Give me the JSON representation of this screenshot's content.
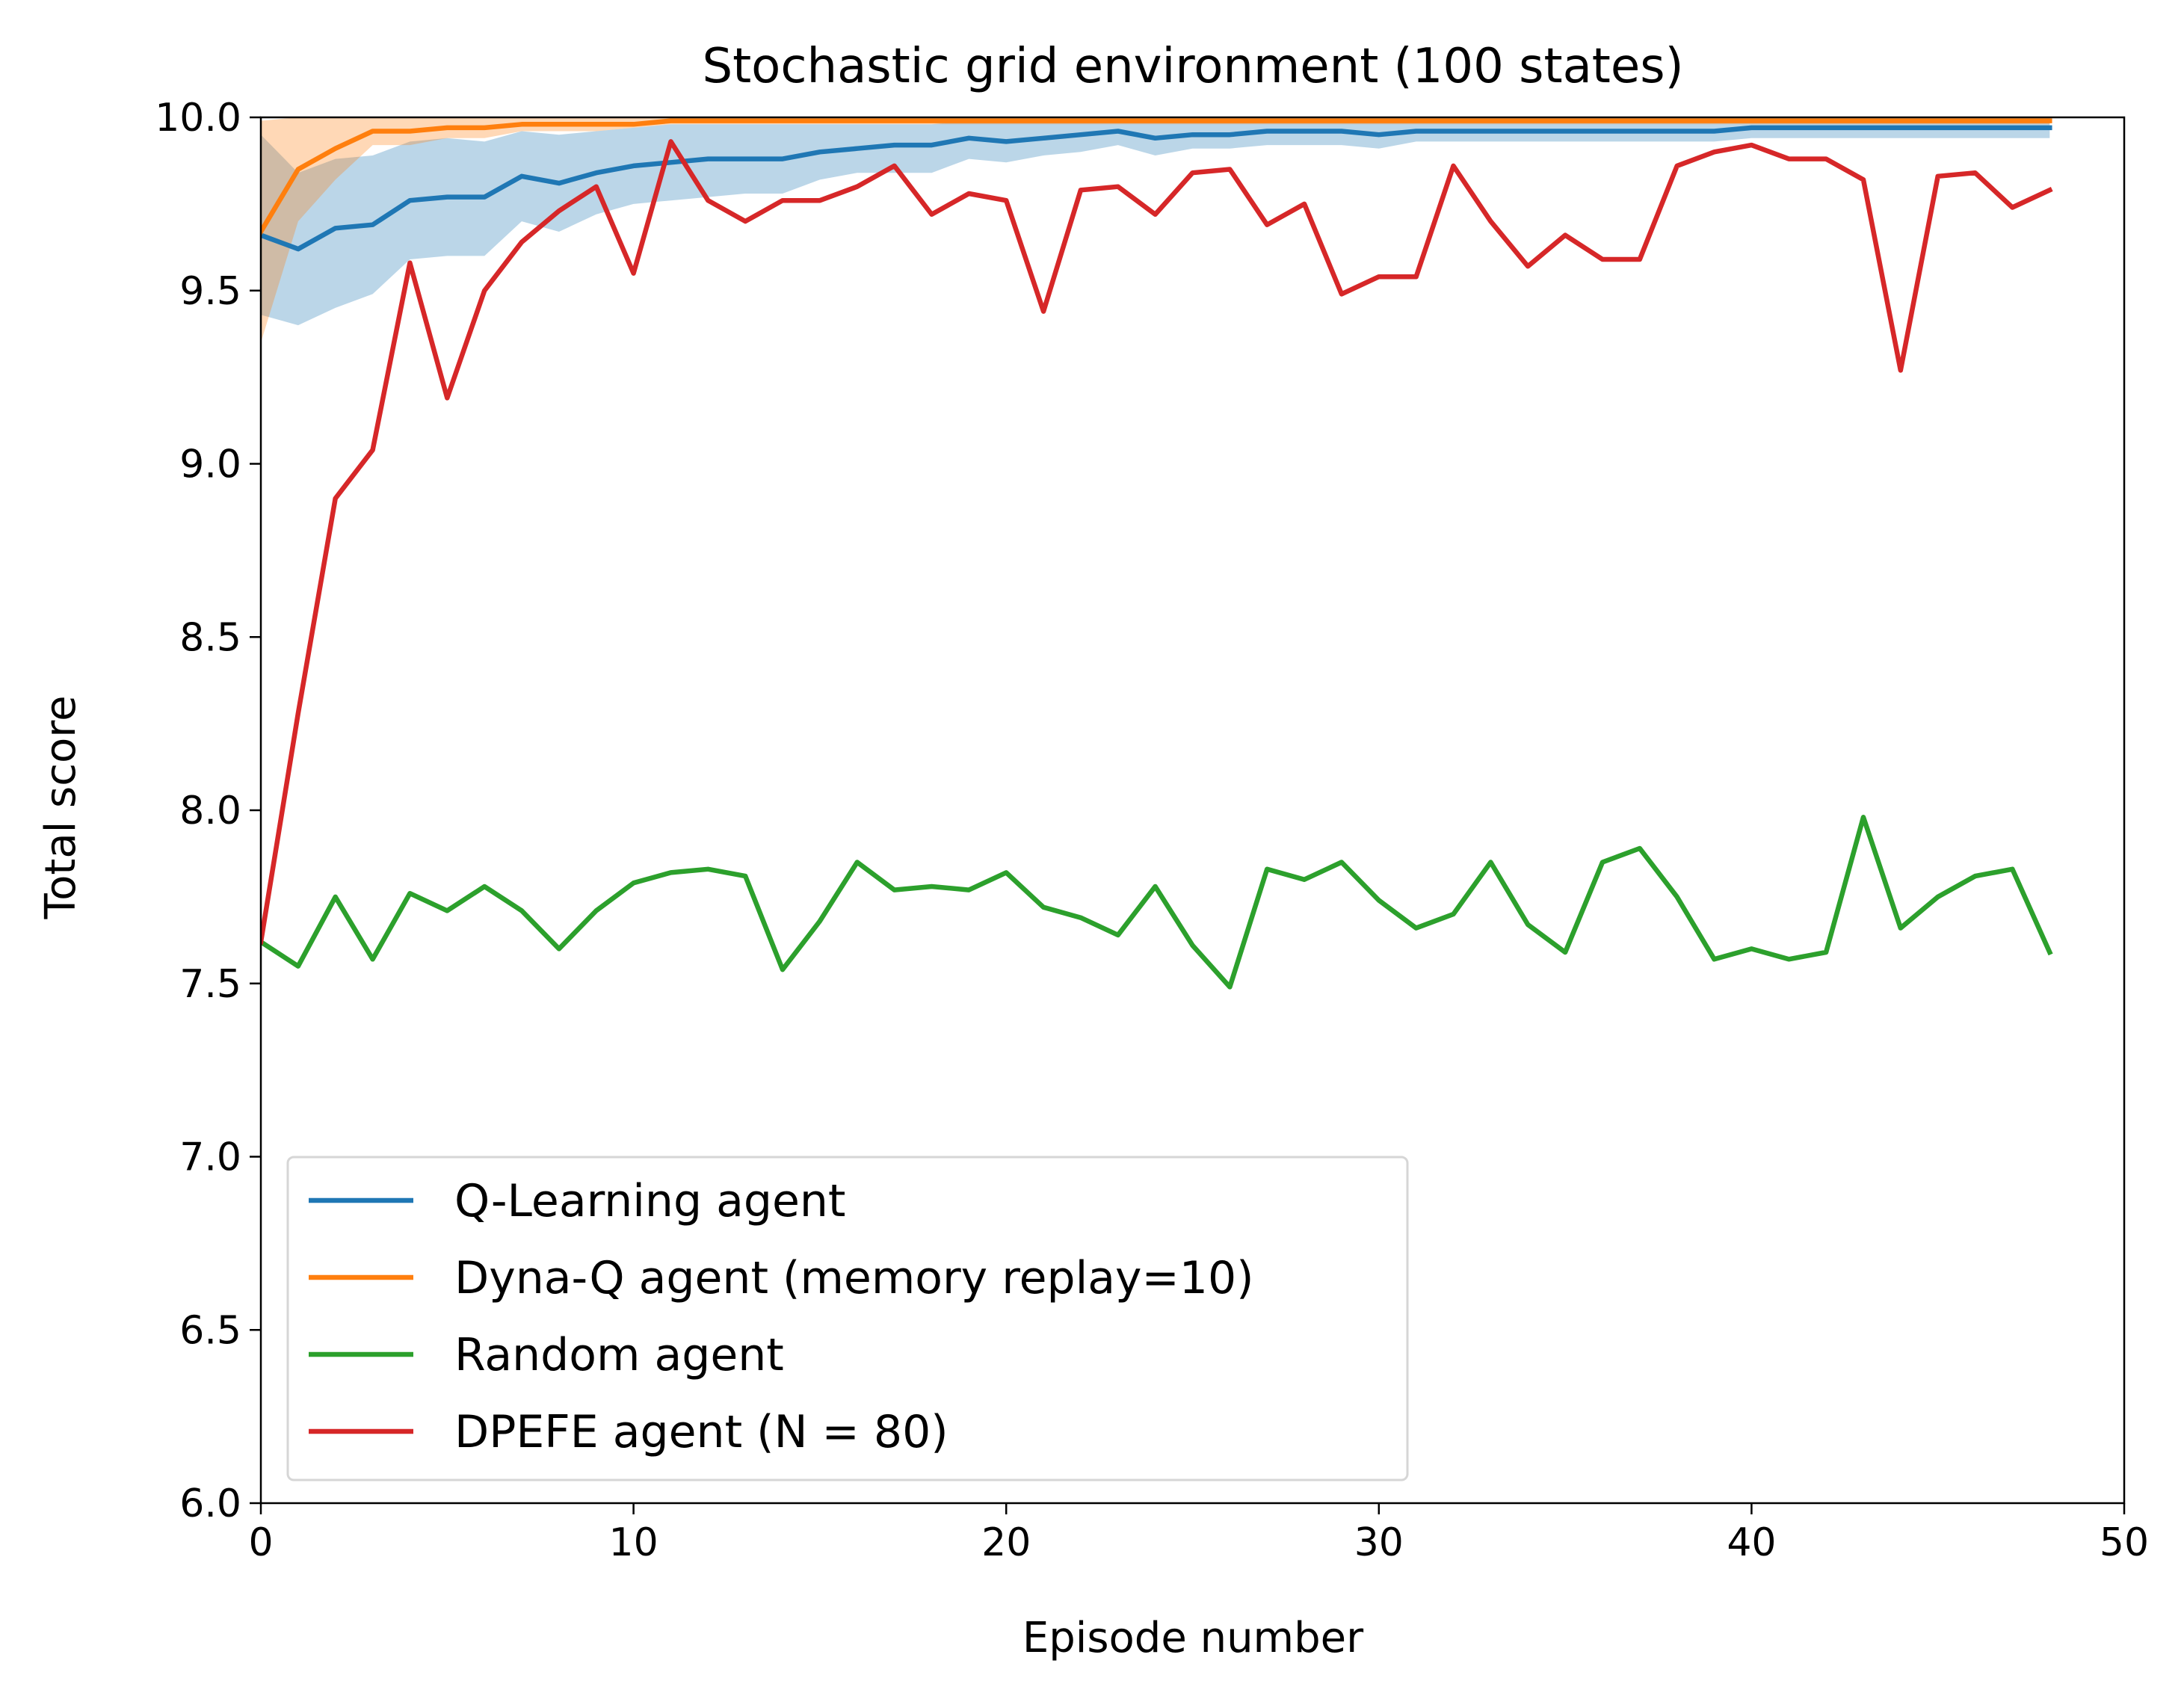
{
  "chart_data": {
    "type": "line",
    "title": "Stochastic grid environment (100 states)",
    "xlabel": "Episode number",
    "ylabel": "Total score",
    "xlim": [
      0,
      50
    ],
    "ylim": [
      6.0,
      10.0
    ],
    "xticks": [
      "0",
      "10",
      "20",
      "30",
      "40",
      "50"
    ],
    "yticks": [
      "6.0",
      "6.5",
      "7.0",
      "7.5",
      "8.0",
      "8.5",
      "9.0",
      "9.5",
      "10.0"
    ],
    "grid": false,
    "legend_position": "lower-left",
    "x": [
      0,
      1,
      2,
      3,
      4,
      5,
      6,
      7,
      8,
      9,
      10,
      11,
      12,
      13,
      14,
      15,
      16,
      17,
      18,
      19,
      20,
      21,
      22,
      23,
      24,
      25,
      26,
      27,
      28,
      29,
      30,
      31,
      32,
      33,
      34,
      35,
      36,
      37,
      38,
      39,
      40,
      41,
      42,
      43,
      44,
      45,
      46,
      47,
      48
    ],
    "series": [
      {
        "name": "Q-Learning agent",
        "color": "#1f77b4",
        "values": [
          9.66,
          9.62,
          9.68,
          9.69,
          9.76,
          9.77,
          9.77,
          9.83,
          9.81,
          9.84,
          9.86,
          9.87,
          9.88,
          9.88,
          9.88,
          9.9,
          9.91,
          9.92,
          9.92,
          9.94,
          9.93,
          9.94,
          9.95,
          9.96,
          9.94,
          9.95,
          9.95,
          9.96,
          9.96,
          9.96,
          9.95,
          9.96,
          9.96,
          9.96,
          9.96,
          9.96,
          9.96,
          9.96,
          9.96,
          9.96,
          9.97,
          9.97,
          9.97,
          9.97,
          9.97,
          9.97,
          9.97,
          9.97,
          9.97
        ],
        "band_upper": [
          9.95,
          9.84,
          9.88,
          9.89,
          9.93,
          9.94,
          9.93,
          9.96,
          9.95,
          9.96,
          9.97,
          9.98,
          9.98,
          9.98,
          9.98,
          9.98,
          9.98,
          9.98,
          9.98,
          9.99,
          9.99,
          9.99,
          9.99,
          9.99,
          9.99,
          9.99,
          9.99,
          9.99,
          9.99,
          9.99,
          9.99,
          9.99,
          9.99,
          9.99,
          9.99,
          9.99,
          9.99,
          9.99,
          9.99,
          9.99,
          9.99,
          9.99,
          9.99,
          9.99,
          9.99,
          9.99,
          9.99,
          9.99,
          9.99
        ],
        "band_lower": [
          9.43,
          9.4,
          9.45,
          9.49,
          9.59,
          9.6,
          9.6,
          9.7,
          9.67,
          9.72,
          9.75,
          9.76,
          9.77,
          9.78,
          9.78,
          9.82,
          9.84,
          9.84,
          9.84,
          9.88,
          9.87,
          9.89,
          9.9,
          9.92,
          9.89,
          9.91,
          9.91,
          9.92,
          9.92,
          9.92,
          9.91,
          9.93,
          9.93,
          9.93,
          9.93,
          9.93,
          9.93,
          9.93,
          9.93,
          9.93,
          9.94,
          9.94,
          9.94,
          9.94,
          9.94,
          9.94,
          9.94,
          9.94,
          9.94
        ]
      },
      {
        "name": "Dyna-Q agent (memory replay=10)",
        "color": "#ff7f0e",
        "values": [
          9.67,
          9.85,
          9.91,
          9.96,
          9.96,
          9.97,
          9.97,
          9.98,
          9.98,
          9.98,
          9.98,
          9.99,
          9.99,
          9.99,
          9.99,
          9.99,
          9.99,
          9.99,
          9.99,
          9.99,
          9.99,
          9.99,
          9.99,
          9.99,
          9.99,
          9.99,
          9.99,
          9.99,
          9.99,
          9.99,
          9.99,
          9.99,
          9.99,
          9.99,
          9.99,
          9.99,
          9.99,
          9.99,
          9.99,
          9.99,
          9.99,
          9.99,
          9.99,
          9.99,
          9.99,
          9.99,
          9.99,
          9.99,
          9.99
        ],
        "band_upper": [
          9.99,
          10.0,
          10.0,
          10.0,
          10.0,
          10.0,
          10.0,
          10.0,
          10.0,
          10.0,
          10.0,
          10.0,
          10.0,
          10.0,
          10.0,
          10.0,
          10.0,
          10.0,
          10.0,
          10.0,
          10.0,
          10.0,
          10.0,
          10.0,
          10.0,
          10.0,
          10.0,
          10.0,
          10.0,
          10.0,
          10.0,
          10.0,
          10.0,
          10.0,
          10.0,
          10.0,
          10.0,
          10.0,
          10.0,
          10.0,
          10.0,
          10.0,
          10.0,
          10.0,
          10.0,
          10.0,
          10.0,
          10.0,
          10.0
        ],
        "band_lower": [
          9.35,
          9.7,
          9.82,
          9.92,
          9.92,
          9.94,
          9.94,
          9.96,
          9.96,
          9.96,
          9.97,
          9.98,
          9.98,
          9.98,
          9.98,
          9.98,
          9.98,
          9.98,
          9.98,
          9.98,
          9.98,
          9.98,
          9.98,
          9.98,
          9.98,
          9.98,
          9.98,
          9.98,
          9.98,
          9.98,
          9.98,
          9.98,
          9.98,
          9.98,
          9.98,
          9.98,
          9.98,
          9.98,
          9.98,
          9.98,
          9.98,
          9.98,
          9.98,
          9.98,
          9.98,
          9.98,
          9.98,
          9.98,
          9.98
        ]
      },
      {
        "name": "Random agent",
        "color": "#2ca02c",
        "values": [
          7.62,
          7.55,
          7.75,
          7.57,
          7.76,
          7.71,
          7.78,
          7.71,
          7.6,
          7.71,
          7.79,
          7.82,
          7.83,
          7.81,
          7.54,
          7.68,
          7.85,
          7.77,
          7.78,
          7.77,
          7.82,
          7.72,
          7.69,
          7.64,
          7.78,
          7.61,
          7.49,
          7.83,
          7.8,
          7.85,
          7.74,
          7.66,
          7.7,
          7.85,
          7.67,
          7.59,
          7.85,
          7.89,
          7.75,
          7.57,
          7.6,
          7.57,
          7.59,
          7.98,
          7.66,
          7.75,
          7.81,
          7.83,
          7.59
        ]
      },
      {
        "name": "DPEFE agent (N = 80)",
        "color": "#d62728",
        "values": [
          7.62,
          8.28,
          8.9,
          9.04,
          9.58,
          9.19,
          9.5,
          9.64,
          9.73,
          9.8,
          9.55,
          9.93,
          9.76,
          9.7,
          9.76,
          9.76,
          9.8,
          9.86,
          9.72,
          9.78,
          9.76,
          9.44,
          9.79,
          9.8,
          9.72,
          9.84,
          9.85,
          9.69,
          9.75,
          9.49,
          9.54,
          9.54,
          9.86,
          9.7,
          9.57,
          9.66,
          9.59,
          9.59,
          9.86,
          9.9,
          9.92,
          9.88,
          9.88,
          9.82,
          9.27,
          9.83,
          9.84,
          9.74,
          9.79
        ]
      }
    ]
  }
}
